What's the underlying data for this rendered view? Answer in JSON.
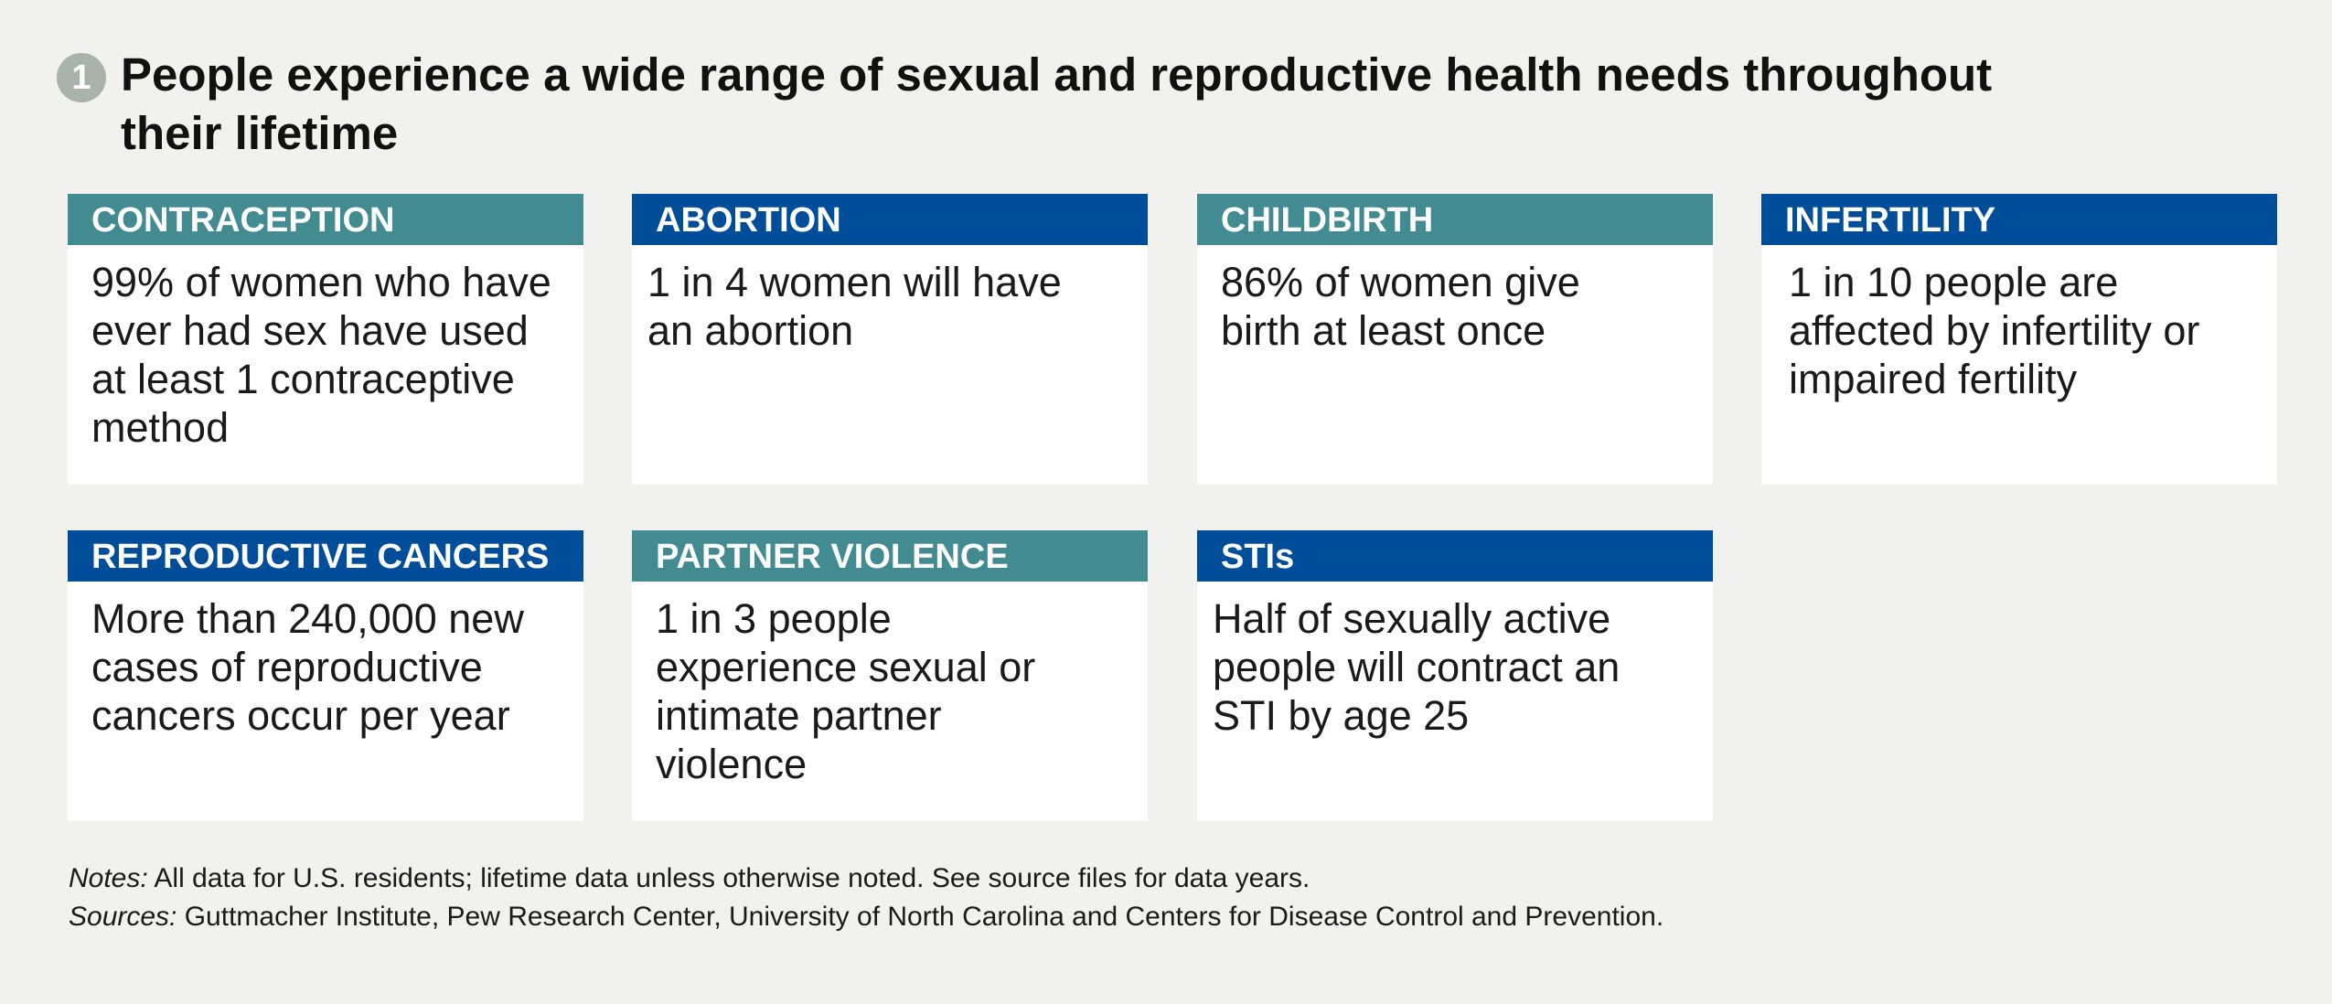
{
  "header": {
    "badge": "1",
    "title": "People experience a wide range of sexual and reproductive health needs throughout their lifetime"
  },
  "colors": {
    "teal": "#428b90",
    "blue": "#004d9a",
    "background": "#f1f1ef"
  },
  "cards": [
    {
      "heading": "CONTRACEPTION",
      "color": "teal",
      "text": "99% of women who have ever had sex have used at least 1 contraceptive method"
    },
    {
      "heading": "ABORTION",
      "color": "blue",
      "text": "1 in 4 women will have an abortion"
    },
    {
      "heading": "CHILDBIRTH",
      "color": "teal",
      "text": "86% of women give birth at least once"
    },
    {
      "heading": "INFERTILITY",
      "color": "blue",
      "text": "1 in 10 people are affected by infertility or impaired fertility"
    },
    {
      "heading": "REPRODUCTIVE CANCERS",
      "color": "blue",
      "text": "More than 240,000 new cases of reproductive cancers occur per year"
    },
    {
      "heading": "PARTNER VIOLENCE",
      "color": "teal",
      "text": "1 in 3 people experience sexual or intimate partner violence"
    },
    {
      "heading": "STIs",
      "color": "blue",
      "text": "Half of sexually active people will contract an STI by age 25"
    }
  ],
  "footer": {
    "notes_label": "Notes:",
    "notes_text": " All data for U.S. residents; lifetime data unless otherwise noted. See source files for data years.",
    "sources_label": "Sources:",
    "sources_text": " Guttmacher Institute, Pew Research Center, University of North Carolina and Centers for Disease Control and Prevention."
  }
}
